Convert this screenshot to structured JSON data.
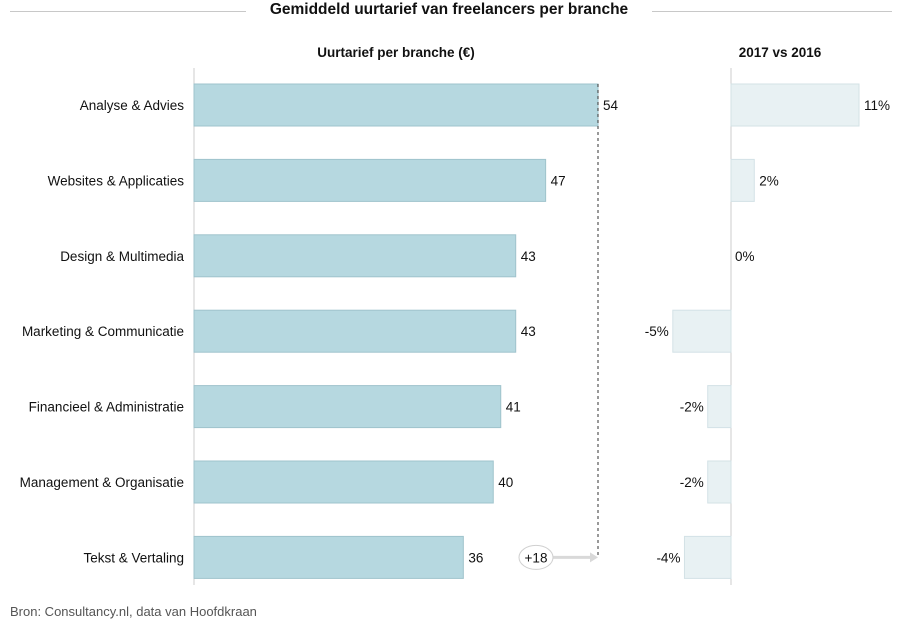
{
  "title": "Gemiddeld uurtarief van freelancers per branche",
  "source": "Bron: Consultancy.nl, data van Hoofdkraan",
  "colors": {
    "bar": "#b6d8e0",
    "bar_stroke": "#9fc3cc",
    "change_bar": "#e8f1f3",
    "change_stroke": "#d3e2e6",
    "axis": "#cccccc",
    "text": "#111111"
  },
  "chart_data": [
    {
      "type": "bar",
      "orientation": "horizontal",
      "title": "Uurtarief per branche (€)",
      "categories": [
        "Analyse & Advies",
        "Websites & Applicaties",
        "Design & Multimedia",
        "Marketing & Communicatie",
        "Financieel & Administratie",
        "Management & Organisatie",
        "Tekst & Vertaling"
      ],
      "values": [
        54,
        47,
        43,
        43,
        41,
        40,
        36
      ],
      "value_labels": [
        "54",
        "47",
        "43",
        "43",
        "41",
        "40",
        "36"
      ],
      "annotation": "+18",
      "xlim": [
        0,
        54
      ]
    },
    {
      "type": "bar",
      "orientation": "horizontal",
      "title": "2017 vs 2016",
      "categories": [
        "Analyse & Advies",
        "Websites & Applicaties",
        "Design & Multimedia",
        "Marketing & Communicatie",
        "Financieel & Administratie",
        "Management & Organisatie",
        "Tekst & Vertaling"
      ],
      "values": [
        11,
        2,
        0,
        -5,
        -2,
        -2,
        -4
      ],
      "value_labels": [
        "11%",
        "2%",
        "0%",
        "-5%",
        "-2%",
        "-2%",
        "-4%"
      ],
      "xlim": [
        -5,
        11
      ]
    }
  ]
}
